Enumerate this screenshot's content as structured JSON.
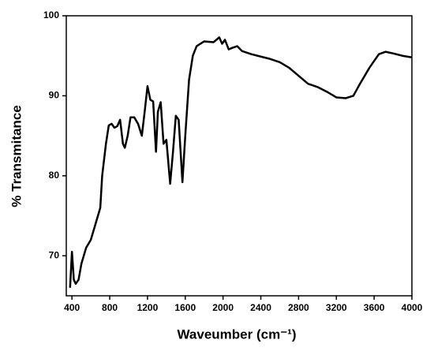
{
  "chart_data": {
    "type": "line",
    "xlabel": "Waveumber (cm⁻¹)",
    "ylabel": "% Transmitance",
    "x": [
      380,
      400,
      420,
      440,
      470,
      500,
      550,
      600,
      650,
      700,
      720,
      760,
      790,
      820,
      850,
      880,
      910,
      940,
      960,
      990,
      1020,
      1060,
      1100,
      1140,
      1170,
      1200,
      1230,
      1260,
      1290,
      1310,
      1340,
      1370,
      1400,
      1440,
      1470,
      1500,
      1530,
      1570,
      1600,
      1640,
      1680,
      1720,
      1800,
      1900,
      1960,
      1990,
      2020,
      2060,
      2100,
      2150,
      2200,
      2300,
      2400,
      2500,
      2600,
      2700,
      2800,
      2900,
      3000,
      3100,
      3200,
      3300,
      3380,
      3450,
      3550,
      3650,
      3720,
      3800,
      3900,
      4000
    ],
    "series": [
      {
        "color": "#000000",
        "values": [
          66,
          70.5,
          67,
          66.5,
          67,
          69,
          71,
          72,
          74,
          76,
          80,
          84,
          86.3,
          86.5,
          86,
          86.2,
          87,
          84,
          83.5,
          85,
          87.3,
          87.3,
          86.5,
          85,
          88,
          91.2,
          89.5,
          89.3,
          83,
          88,
          89.2,
          84,
          84.5,
          79,
          83,
          87.5,
          87,
          79.2,
          85,
          92,
          95,
          96.2,
          96.8,
          96.7,
          97.3,
          96.5,
          97,
          95.8,
          96,
          96.2,
          95.6,
          95.2,
          94.9,
          94.6,
          94.2,
          93.5,
          92.5,
          91.5,
          91.1,
          90.5,
          89.8,
          89.7,
          90,
          91.5,
          93.5,
          95.2,
          95.5,
          95.3,
          95,
          94.8
        ]
      }
    ],
    "xlim": [
      340,
      4000
    ],
    "ylim": [
      65,
      100
    ],
    "xticks": [
      400,
      800,
      1200,
      1600,
      2000,
      2400,
      2800,
      3200,
      3600,
      4000
    ],
    "yticks": [
      70,
      80,
      90,
      100
    ]
  }
}
